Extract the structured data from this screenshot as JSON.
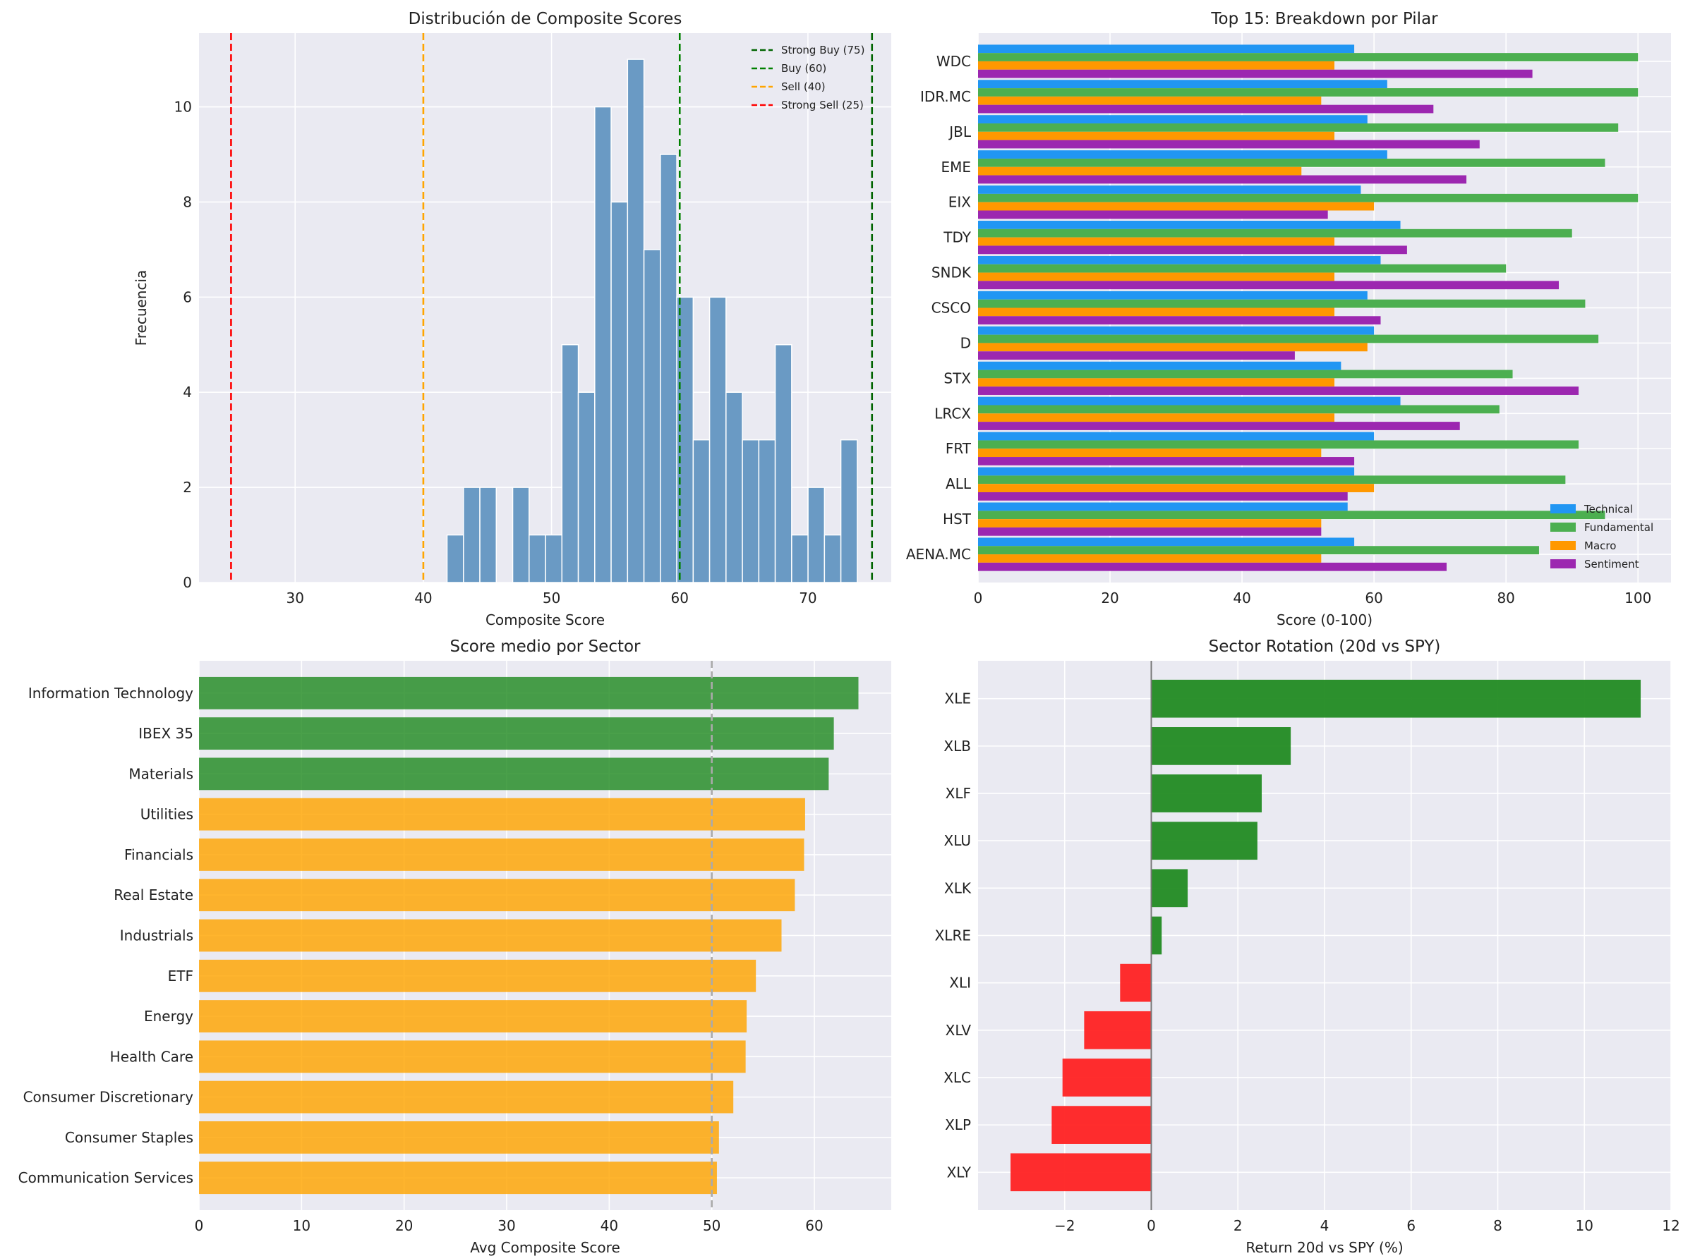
{
  "colors": {
    "axes_bg": "#EAEAF2",
    "grid": "#FFFFFF",
    "hist_bar": "#6A9AC4",
    "strong_buy": "#006400",
    "buy": "#008000",
    "sell": "#FFA500",
    "strong_sell": "#FF0000",
    "technical": "#2196F3",
    "fundamental": "#4CAF50",
    "macro": "#FF9800",
    "sentiment": "#9C27B0",
    "sector_high": "#228B22",
    "sector_mid": "#FFA500",
    "positive": "#228B22",
    "negative": "#FF2222",
    "refline": "#AAAAAA",
    "zeroline": "#777777"
  },
  "chart_data": [
    {
      "type": "bar",
      "subtype": "histogram",
      "title": "Distribución de Composite Scores",
      "xlabel": "Composite Score",
      "ylabel": "Frecuencia",
      "xlim": [
        22.5,
        76.5
      ],
      "ylim": [
        0,
        11.55
      ],
      "xticks": [
        30,
        40,
        50,
        60,
        70
      ],
      "yticks": [
        0,
        2,
        4,
        6,
        8,
        10
      ],
      "bin_start": 41.85,
      "bin_width": 1.28,
      "counts": [
        1,
        2,
        2,
        0,
        2,
        1,
        1,
        5,
        4,
        10,
        8,
        11,
        7,
        9,
        6,
        3,
        6,
        4,
        3,
        3,
        5,
        1,
        2,
        1,
        3
      ],
      "vlines": [
        {
          "label": "Strong Buy (75)",
          "x": 75,
          "color": "#006400"
        },
        {
          "label": "Buy (60)",
          "x": 60,
          "color": "#008000"
        },
        {
          "label": "Sell (40)",
          "x": 40,
          "color": "#FFA500"
        },
        {
          "label": "Strong Sell (25)",
          "x": 25,
          "color": "#FF0000"
        }
      ],
      "legend": "top-right",
      "grid": true
    },
    {
      "type": "bar",
      "orientation": "horizontal",
      "title": "Top 15: Breakdown por Pilar",
      "xlabel": "Score (0-100)",
      "xlim": [
        0,
        105
      ],
      "xticks": [
        0,
        20,
        40,
        60,
        80,
        100
      ],
      "categories": [
        "WDC",
        "IDR.MC",
        "JBL",
        "EME",
        "EIX",
        "TDY",
        "SNDK",
        "CSCO",
        "D",
        "STX",
        "LRCX",
        "FRT",
        "ALL",
        "HST",
        "AENA.MC"
      ],
      "series": [
        {
          "name": "Technical",
          "color": "#2196F3",
          "values": [
            57,
            62,
            59,
            62,
            58,
            64,
            61,
            59,
            60,
            55,
            64,
            60,
            57,
            56,
            57
          ]
        },
        {
          "name": "Fundamental",
          "color": "#4CAF50",
          "values": [
            100,
            100,
            97,
            95,
            100,
            90,
            80,
            92,
            94,
            81,
            79,
            91,
            89,
            95,
            85
          ]
        },
        {
          "name": "Macro",
          "color": "#FF9800",
          "values": [
            54,
            52,
            54,
            49,
            60,
            54,
            54,
            54,
            59,
            54,
            54,
            52,
            60,
            52,
            52
          ]
        },
        {
          "name": "Sentiment",
          "color": "#9C27B0",
          "values": [
            84,
            69,
            76,
            74,
            53,
            65,
            88,
            61,
            48,
            91,
            73,
            57,
            56,
            52,
            71
          ]
        }
      ],
      "legend": "lower-right",
      "grid": true
    },
    {
      "type": "bar",
      "orientation": "horizontal",
      "title": "Score medio por Sector",
      "xlabel": "Avg Composite Score",
      "xlim": [
        0,
        67.5
      ],
      "xticks": [
        0,
        10,
        20,
        30,
        40,
        50,
        60
      ],
      "refline": 50,
      "categories": [
        "Information Technology",
        "IBEX 35",
        "Materials",
        "Utilities",
        "Financials",
        "Real Estate",
        "Industrials",
        "ETF",
        "Energy",
        "Health Care",
        "Consumer Discretionary",
        "Consumer Staples",
        "Communication Services"
      ],
      "values": [
        64.3,
        61.9,
        61.4,
        59.1,
        59.0,
        58.1,
        56.8,
        54.3,
        53.4,
        53.3,
        52.1,
        50.7,
        50.5
      ],
      "colors": [
        "#228B22",
        "#228B22",
        "#228B22",
        "#FFA500",
        "#FFA500",
        "#FFA500",
        "#FFA500",
        "#FFA500",
        "#FFA500",
        "#FFA500",
        "#FFA500",
        "#FFA500",
        "#FFA500"
      ],
      "grid": true
    },
    {
      "type": "bar",
      "orientation": "horizontal",
      "title": "Sector Rotation (20d vs SPY)",
      "xlabel": "Return 20d vs SPY (%)",
      "xlim": [
        -4.0,
        12.0
      ],
      "xticks": [
        -2,
        0,
        2,
        4,
        6,
        8,
        10,
        12
      ],
      "xticklabels": [
        "−2",
        "0",
        "2",
        "4",
        "6",
        "8",
        "10",
        "12"
      ],
      "categories": [
        "XLE",
        "XLB",
        "XLF",
        "XLU",
        "XLK",
        "XLRE",
        "XLI",
        "XLV",
        "XLC",
        "XLP",
        "XLY"
      ],
      "values": [
        11.3,
        3.22,
        2.55,
        2.45,
        0.84,
        0.24,
        -0.72,
        -1.55,
        -2.05,
        -2.3,
        -3.25
      ],
      "grid": true
    }
  ]
}
